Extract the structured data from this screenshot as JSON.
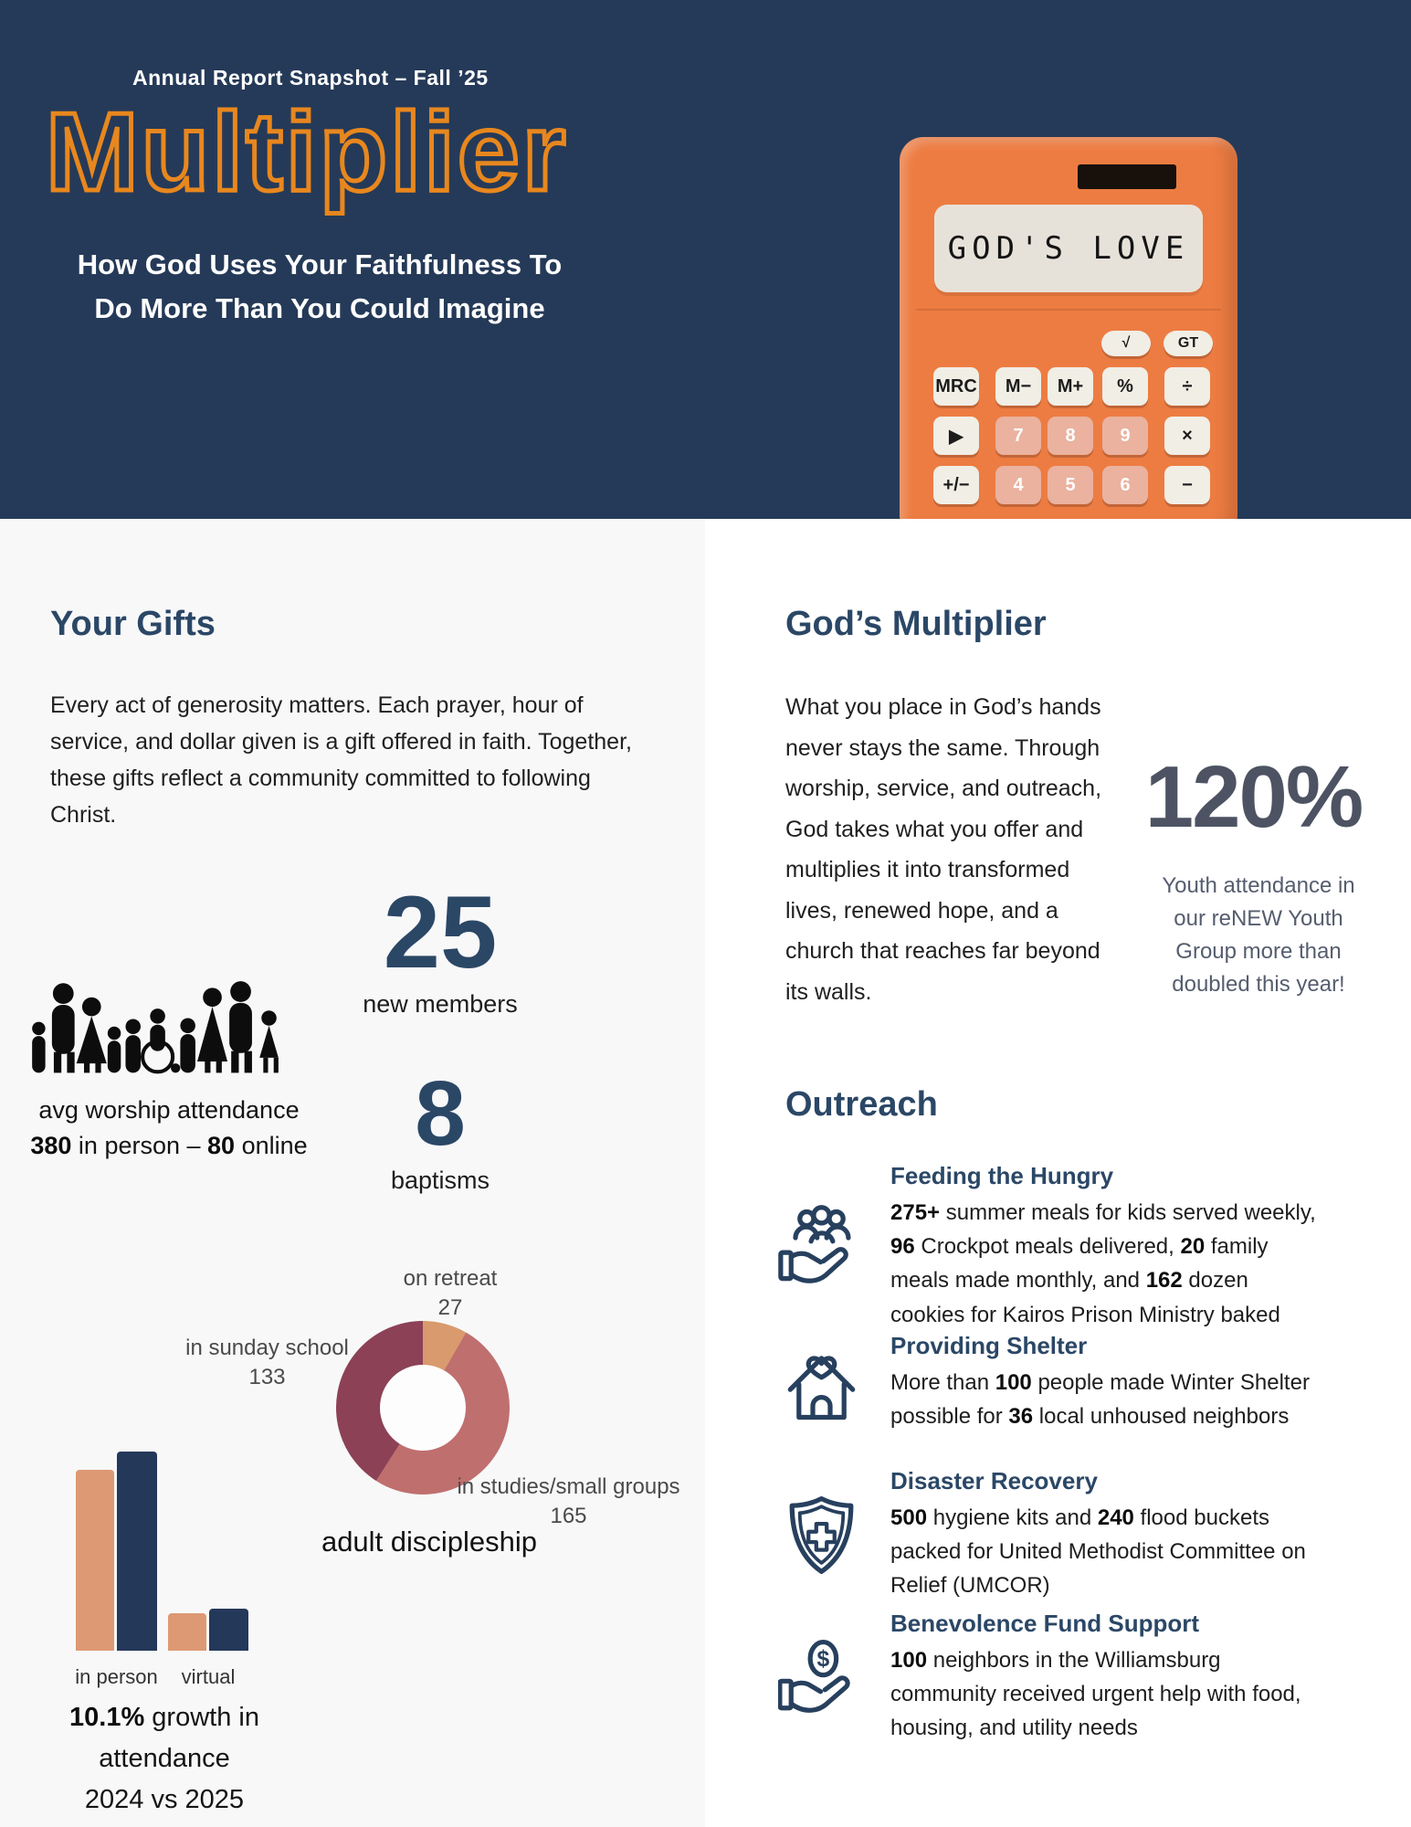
{
  "colors": {
    "navy_bg": "#253a58",
    "title_orange": "#e8871e",
    "calculator_orange": "#ed7c42",
    "heading_navy": "#2b4766",
    "big_stat_slate": "#4d5363",
    "donut_salmon": "#d99a6d",
    "donut_rose": "#bf6f6e",
    "donut_maroon": "#8c4156",
    "bar_salmon": "#dd9973",
    "bar_navy": "#24385a"
  },
  "header": {
    "eyebrow": "Annual Report Snapshot – Fall ’25",
    "title": "Multiplier",
    "subtitle_lines": [
      "How God Uses Your Faithfulness To",
      "Do More Than You Could Imagine"
    ]
  },
  "calculator": {
    "display": "GOD'S LOVE",
    "top_buttons": [
      "√",
      "GT"
    ],
    "rows": [
      [
        {
          "label": "MRC"
        },
        {
          "label": "M−"
        },
        {
          "label": "M+"
        },
        {
          "label": "%"
        },
        {
          "label": "÷"
        }
      ],
      [
        {
          "label": "▶"
        },
        {
          "label": "7"
        },
        {
          "label": "8"
        },
        {
          "label": "9"
        },
        {
          "label": "×"
        }
      ],
      [
        {
          "label": "+/−"
        },
        {
          "label": "4"
        },
        {
          "label": "5"
        },
        {
          "label": "6"
        },
        {
          "label": "−"
        }
      ]
    ]
  },
  "left": {
    "your_gifts": {
      "heading": "Your Gifts",
      "body": "Every act of generosity matters. Each prayer, hour of service, and dollar given is a gift offered in faith. Together, these gifts reflect a community committed to following Christ."
    },
    "stats": {
      "members_value": "25",
      "members_label": "new members",
      "baptisms_value": "8",
      "baptisms_label": "baptisms",
      "attendance_line1": "avg worship attendance",
      "attendance_segments": [
        {
          "t": "380",
          "b": true
        },
        {
          "t": " in person – "
        },
        {
          "t": "80",
          "b": true
        },
        {
          "t": " online"
        }
      ]
    }
  },
  "right": {
    "gods_multiplier": {
      "heading": "God’s Multiplier",
      "body": "What you place in God’s hands never stays the same. Through worship, service, and outreach, God takes what you offer and multiplies it into transformed lives, renewed hope, and a church that reaches far beyond its walls."
    },
    "youth_stat": {
      "value": "120%",
      "caption": "Youth attendance in our reNEW Youth Group more than doubled this year!"
    },
    "outreach": {
      "heading": "Outreach",
      "items": [
        {
          "icon": "community-hand-icon",
          "title": "Feeding the Hungry",
          "body_segments": [
            {
              "t": "275+",
              "b": true
            },
            {
              "t": " summer meals for kids served weekly, "
            },
            {
              "t": "96",
              "b": true
            },
            {
              "t": " Crockpot meals delivered, "
            },
            {
              "t": "20",
              "b": true
            },
            {
              "t": " family meals made monthly, and "
            },
            {
              "t": "162",
              "b": true
            },
            {
              "t": " dozen cookies for Kairos Prison Ministry baked"
            }
          ]
        },
        {
          "icon": "house-heart-icon",
          "title": "Providing Shelter",
          "body_segments": [
            {
              "t": "More than "
            },
            {
              "t": "100",
              "b": true
            },
            {
              "t": " people made Winter Shelter possible for "
            },
            {
              "t": "36",
              "b": true
            },
            {
              "t": " local unhoused neighbors"
            }
          ]
        },
        {
          "icon": "shield-cross-icon",
          "title": "Disaster Recovery",
          "body_segments": [
            {
              "t": "500",
              "b": true
            },
            {
              "t": " hygiene kits and "
            },
            {
              "t": "240",
              "b": true
            },
            {
              "t": " flood buckets packed for United Methodist Committee on Relief (UMCOR)"
            }
          ]
        },
        {
          "icon": "dollar-hand-icon",
          "title": "Benevolence Fund Support",
          "body_segments": [
            {
              "t": "100",
              "b": true
            },
            {
              "t": " neighbors in the Williamsburg community received urgent help with food, housing, and utility needs"
            }
          ]
        }
      ]
    }
  },
  "chart_data": [
    {
      "type": "pie",
      "donut": true,
      "title": "adult discipleship",
      "labels": [
        "on retreat",
        "in studies/small groups",
        "in sunday school"
      ],
      "values": [
        27,
        165,
        133
      ],
      "colors": [
        "#d99a6d",
        "#bf6f6e",
        "#8c4156"
      ],
      "order": "clockwise-from-top",
      "legend_position": "outside-labels"
    },
    {
      "type": "bar",
      "categories": [
        "in person",
        "virtual"
      ],
      "series": [
        {
          "name": "2024",
          "color": "#dd9973",
          "values": [
            345,
            72
          ]
        },
        {
          "name": "2025",
          "color": "#24385a",
          "values": [
            380,
            80
          ]
        }
      ],
      "ylim": [
        0,
        380
      ],
      "grid": false,
      "caption_segments": [
        {
          "t": "10.1%",
          "b": true
        },
        {
          "t": " growth in attendance"
        }
      ],
      "caption_line2": "2024 vs 2025"
    }
  ]
}
